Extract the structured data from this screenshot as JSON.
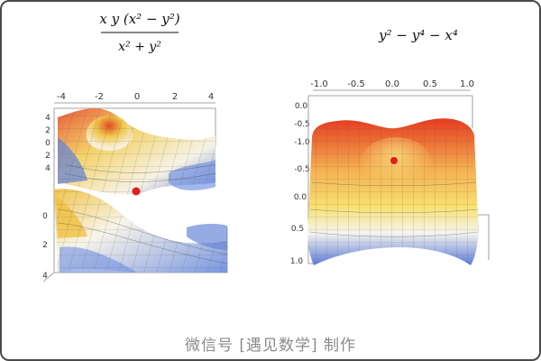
{
  "panels": {
    "left": {
      "formula": {
        "numerator": "x y (x² − y²)",
        "denominator": "x² + y²"
      },
      "ticks": [
        "-4",
        "-2",
        "0",
        "2",
        "4"
      ],
      "side_ticks_top": [
        "4",
        "2",
        "0",
        "2",
        "4"
      ],
      "side_ticks_bottom": [
        "0",
        "2",
        "4"
      ],
      "marker_color": "#e02020"
    },
    "right": {
      "formula": "y² − y⁴ − x⁴",
      "ticks": [
        "-1.0",
        "-0.5",
        "0.0",
        "0.5",
        "1.0"
      ],
      "side_ticks": [
        "0.0",
        "-0.5",
        "-1.0",
        "-0.5",
        "0.0",
        "0.5",
        "1.0"
      ],
      "marker_color": "#e02020"
    }
  },
  "caption": "微信号 [遇见数学] 制作",
  "colors": {
    "hot": "#e03018",
    "warm": "#f0c040",
    "pale": "#f6f0e0",
    "cool": "#5070d0",
    "frame": "#888888",
    "border": "#4a4a4a"
  }
}
